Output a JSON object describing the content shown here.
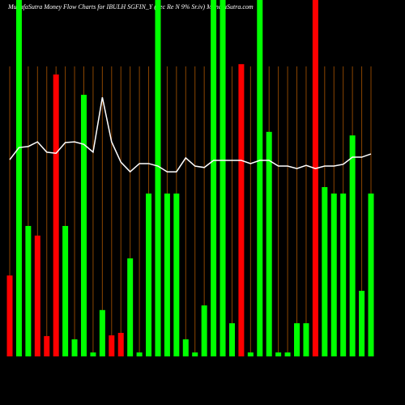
{
  "chart_data": {
    "type": "bar_line",
    "title": "MunafaSutra  Money Flow  Charts for IBULH                SGFIN_Y              (Sec Re    N    9% Sr.iv) MunafaSutra.com",
    "categories": [
      null,
      null,
      null,
      null,
      null,
      null,
      null,
      null,
      null,
      null,
      null,
      null,
      null,
      null,
      null,
      null,
      null,
      null,
      null,
      null,
      null,
      null,
      null,
      null,
      null,
      null,
      null,
      null,
      null,
      null,
      null,
      null,
      null,
      null,
      null,
      null,
      null,
      null,
      null,
      null
    ],
    "series": [
      {
        "type": "bar",
        "values": [
          22.7,
          100,
          36.6,
          33.9,
          5.7,
          79.1,
          36.6,
          4.8,
          73.4,
          1.1,
          13,
          5.9,
          6.6,
          27.5,
          1.1,
          45.7,
          100,
          45.7,
          45.7,
          4.8,
          1.1,
          14.3,
          100,
          100,
          9.3,
          82,
          1.1,
          100,
          63,
          1.1,
          1.1,
          9.3,
          9.3,
          100,
          47.5,
          45.7,
          45.7,
          62,
          18.4,
          45.7
        ],
        "colors": [
          "#ff0000",
          "#00ff00",
          "#00ff00",
          "#ff0000",
          "#ff0000",
          "#ff0000",
          "#00ff00",
          "#00ff00",
          "#00ff00",
          "#00ff00",
          "#00ff00",
          "#ff0000",
          "#ff0000",
          "#00ff00",
          "#00ff00",
          "#00ff00",
          "#00ff00",
          "#00ff00",
          "#00ff00",
          "#00ff00",
          "#00ff00",
          "#00ff00",
          "#00ff00",
          "#00ff00",
          "#00ff00",
          "#ff0000",
          "#00ff00",
          "#00ff00",
          "#00ff00",
          "#00ff00",
          "#00ff00",
          "#00ff00",
          "#00ff00",
          "#ff0000",
          "#00ff00",
          "#00ff00",
          "#00ff00",
          "#00ff00",
          "#00ff00",
          "#00ff00"
        ]
      },
      {
        "type": "line",
        "color": "#ffffff",
        "values": [
          55.2,
          58.6,
          58.9,
          60.2,
          57.3,
          57,
          60,
          60.2,
          59.5,
          57.3,
          72.7,
          60.2,
          54.5,
          51.8,
          54.1,
          54.1,
          53.4,
          51.8,
          51.8,
          55.7,
          53.4,
          53,
          55,
          55,
          55,
          55,
          54.1,
          55,
          55,
          53.4,
          53.4,
          52.7,
          53.6,
          52.7,
          53.4,
          53.4,
          53.9,
          55.9,
          55.9,
          56.8
        ]
      }
    ],
    "ylim": [
      0,
      100
    ],
    "grid_color": "#8b4500"
  }
}
